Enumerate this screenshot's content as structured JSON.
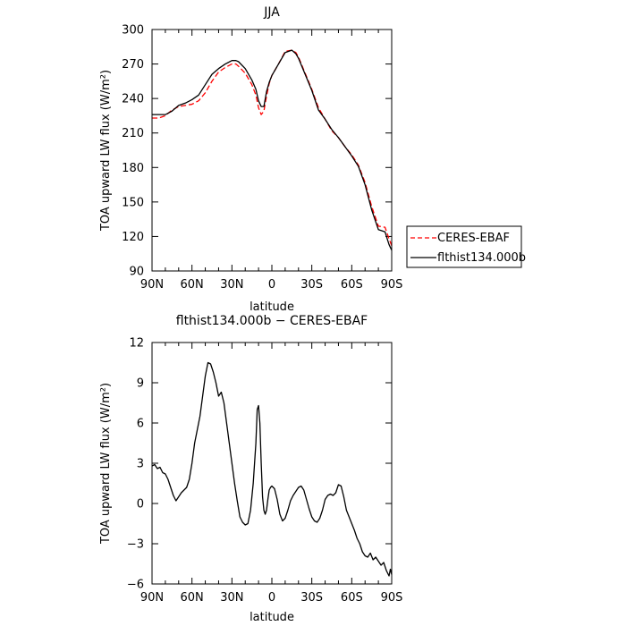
{
  "chart_data": [
    {
      "type": "line",
      "title": "JJA",
      "xlabel": "latitude",
      "ylabel": "TOA upward LW flux (W/m²)",
      "xlim": [
        90,
        -90
      ],
      "ylim": [
        90,
        300
      ],
      "x_ticks": [
        90,
        60,
        30,
        0,
        -30,
        -60,
        -90
      ],
      "x_tick_labels": [
        "90N",
        "60N",
        "30N",
        "0",
        "30S",
        "60S",
        "90S"
      ],
      "y_ticks": [
        90,
        120,
        150,
        180,
        210,
        240,
        270,
        300
      ],
      "y_tick_labels": [
        "90",
        "120",
        "150",
        "180",
        "210",
        "240",
        "270",
        "300"
      ],
      "legend_position": "right",
      "series": [
        {
          "name": "CERES-EBAF",
          "color": "#ff0000",
          "dash": "dashed",
          "x": [
            90,
            85,
            80,
            75,
            70,
            65,
            60,
            55,
            50,
            45,
            40,
            35,
            30,
            27,
            25,
            20,
            15,
            12,
            10,
            8,
            6,
            4,
            2,
            0,
            -5,
            -10,
            -15,
            -18,
            -20,
            -25,
            -30,
            -35,
            -40,
            -45,
            -50,
            -55,
            -60,
            -65,
            -70,
            -75,
            -80,
            -85,
            -88,
            -90
          ],
          "y": [
            223,
            223,
            225,
            230,
            233,
            234,
            235,
            238,
            245,
            255,
            263,
            267,
            270,
            270,
            268,
            262,
            252,
            243,
            232,
            226,
            229,
            242,
            253,
            260,
            270,
            281,
            282,
            280,
            276,
            262,
            248,
            232,
            222,
            212,
            206,
            198,
            191,
            182,
            167,
            146,
            129,
            128,
            118,
            112
          ]
        },
        {
          "name": "flthist134.000b",
          "color": "#000000",
          "dash": "solid",
          "x": [
            90,
            85,
            80,
            75,
            70,
            65,
            60,
            55,
            50,
            45,
            40,
            35,
            30,
            27,
            25,
            20,
            15,
            12,
            10,
            8,
            6,
            4,
            2,
            0,
            -5,
            -10,
            -15,
            -18,
            -20,
            -25,
            -30,
            -35,
            -40,
            -45,
            -50,
            -55,
            -60,
            -65,
            -70,
            -75,
            -80,
            -85,
            -88,
            -90
          ],
          "y": [
            226,
            226,
            226,
            229,
            234,
            236,
            239,
            243,
            252,
            261,
            266,
            270,
            273,
            273,
            272,
            266,
            256,
            248,
            238,
            233,
            233,
            246,
            254,
            260,
            270,
            280,
            282,
            279,
            275,
            261,
            247,
            230,
            222,
            213,
            206,
            198,
            190,
            181,
            165,
            143,
            126,
            124,
            113,
            108
          ]
        }
      ]
    },
    {
      "type": "line",
      "title": "flthist134.000b − CERES-EBAF",
      "xlabel": "latitude",
      "ylabel": "TOA upward LW flux (W/m²)",
      "xlim": [
        90,
        -90
      ],
      "ylim": [
        -6,
        12
      ],
      "x_ticks": [
        90,
        60,
        30,
        0,
        -30,
        -60,
        -90
      ],
      "x_tick_labels": [
        "90N",
        "60N",
        "30N",
        "0",
        "30S",
        "60S",
        "90S"
      ],
      "y_ticks": [
        -6,
        -3,
        0,
        3,
        6,
        9,
        12
      ],
      "y_tick_labels": [
        "−6",
        "−3",
        "0",
        "3",
        "6",
        "9",
        "12"
      ],
      "series": [
        {
          "color": "#000000",
          "dash": "solid",
          "x": [
            90,
            88,
            86,
            84,
            82,
            80,
            78,
            76,
            74,
            72,
            70,
            68,
            66,
            64,
            62,
            60,
            58,
            56,
            54,
            52,
            50,
            48,
            46,
            44,
            42,
            40,
            38,
            36,
            34,
            32,
            30,
            28,
            26,
            24,
            22,
            20,
            18,
            16,
            14,
            12,
            11,
            10,
            9,
            8,
            7,
            6,
            5,
            4,
            3,
            2,
            1,
            0,
            -2,
            -4,
            -6,
            -8,
            -10,
            -12,
            -14,
            -16,
            -18,
            -20,
            -22,
            -24,
            -26,
            -28,
            -30,
            -32,
            -34,
            -36,
            -38,
            -40,
            -42,
            -44,
            -46,
            -48,
            -50,
            -52,
            -54,
            -56,
            -58,
            -60,
            -62,
            -64,
            -66,
            -68,
            -70,
            -72,
            -74,
            -76,
            -78,
            -80,
            -82,
            -84,
            -86,
            -88,
            -89,
            -90
          ],
          "y": [
            2.8,
            2.9,
            2.6,
            2.7,
            2.3,
            2.2,
            1.8,
            1.2,
            0.6,
            0.2,
            0.5,
            0.8,
            1.0,
            1.2,
            1.8,
            3.0,
            4.5,
            5.5,
            6.5,
            8.0,
            9.5,
            10.5,
            10.4,
            9.8,
            9.0,
            8.0,
            8.3,
            7.5,
            6.0,
            4.5,
            3.0,
            1.5,
            0.2,
            -1.0,
            -1.4,
            -1.6,
            -1.5,
            -0.5,
            1.5,
            4.5,
            7.0,
            7.3,
            6.0,
            3.0,
            0.5,
            -0.5,
            -0.8,
            -0.5,
            0.3,
            1.0,
            1.2,
            1.3,
            1.1,
            0.3,
            -0.8,
            -1.3,
            -1.1,
            -0.5,
            0.2,
            0.6,
            0.9,
            1.2,
            1.3,
            1.0,
            0.3,
            -0.4,
            -1.0,
            -1.3,
            -1.4,
            -1.1,
            -0.5,
            0.3,
            0.6,
            0.7,
            0.6,
            0.8,
            1.4,
            1.3,
            0.5,
            -0.5,
            -1.0,
            -1.5,
            -2.0,
            -2.6,
            -3.0,
            -3.6,
            -3.9,
            -4.0,
            -3.7,
            -4.2,
            -4.0,
            -4.3,
            -4.6,
            -4.4,
            -5.0,
            -5.4,
            -4.9,
            -5.3
          ]
        }
      ]
    }
  ]
}
